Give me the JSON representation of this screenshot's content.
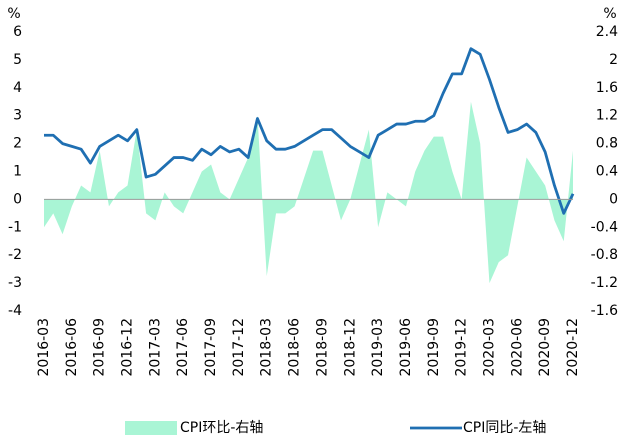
{
  "chart_data": {
    "type": "line",
    "y_unit": "%",
    "y2_unit": "%",
    "categories": [
      "2016-03",
      null,
      null,
      "2016-06",
      null,
      null,
      "2016-09",
      null,
      null,
      "2016-12",
      null,
      null,
      "2017-03",
      null,
      null,
      "2017-06",
      null,
      null,
      "2017-09",
      null,
      null,
      "2017-12",
      null,
      null,
      "2018-03",
      null,
      null,
      "2018-06",
      null,
      null,
      "2018-09",
      null,
      null,
      "2018-12",
      null,
      null,
      "2019-03",
      null,
      null,
      "2019-06",
      null,
      null,
      "2019-09",
      null,
      null,
      "2019-12",
      null,
      null,
      "2020-03",
      null,
      null,
      "2020-06",
      null,
      null,
      "2020-09",
      null,
      null,
      "2020-12"
    ],
    "series": [
      {
        "name": "CPI环比-右轴",
        "type": "area",
        "axis": "y2",
        "color": "#a9f5d5",
        "values": [
          -0.4,
          -0.2,
          -0.5,
          -0.1,
          0.2,
          0.1,
          0.7,
          -0.1,
          0.1,
          0.2,
          1.0,
          -0.2,
          -0.3,
          0.1,
          -0.1,
          -0.2,
          0.1,
          0.4,
          0.5,
          0.1,
          0.0,
          0.3,
          0.6,
          1.2,
          -1.1,
          -0.2,
          -0.2,
          -0.1,
          0.3,
          0.7,
          0.7,
          0.2,
          -0.3,
          0.0,
          0.5,
          1.0,
          -0.4,
          0.1,
          0.0,
          -0.1,
          0.4,
          0.7,
          0.9,
          0.9,
          0.4,
          0.0,
          1.4,
          0.8,
          -1.2,
          -0.9,
          -0.8,
          -0.1,
          0.6,
          0.4,
          0.2,
          -0.3,
          -0.6,
          0.7
        ]
      },
      {
        "name": "CPI同比-左轴",
        "type": "line",
        "axis": "y",
        "color": "#1f6fb2",
        "values": [
          2.3,
          2.3,
          2.0,
          1.9,
          1.8,
          1.3,
          1.9,
          2.1,
          2.3,
          2.1,
          2.5,
          0.8,
          0.9,
          1.2,
          1.5,
          1.5,
          1.4,
          1.8,
          1.6,
          1.9,
          1.7,
          1.8,
          1.5,
          2.9,
          2.1,
          1.8,
          1.8,
          1.9,
          2.1,
          2.3,
          2.5,
          2.5,
          2.2,
          1.9,
          1.7,
          1.5,
          2.3,
          2.5,
          2.7,
          2.7,
          2.8,
          2.8,
          3.0,
          3.8,
          4.5,
          4.5,
          5.4,
          5.2,
          4.3,
          3.3,
          2.4,
          2.5,
          2.7,
          2.4,
          1.7,
          0.5,
          -0.5,
          0.2
        ]
      }
    ],
    "ylim": [
      -4,
      6
    ],
    "yticks": [
      -4,
      -3,
      -2,
      -1,
      0,
      1,
      2,
      3,
      4,
      5,
      6
    ],
    "y2lim": [
      -1.6,
      2.4
    ],
    "y2ticks": [
      -1.6,
      -1.2,
      -0.8,
      -0.4,
      0,
      0.4,
      0.8,
      1.2,
      1.6,
      2,
      2.4
    ],
    "grid": false,
    "legend": "bottom"
  }
}
